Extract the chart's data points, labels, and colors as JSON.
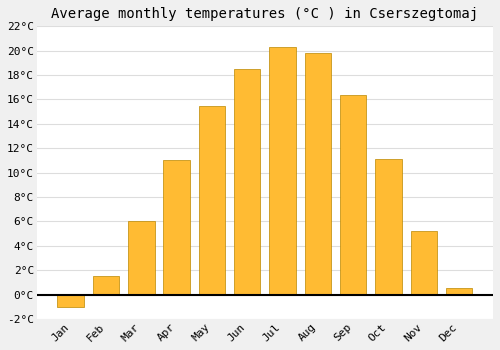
{
  "title": "Average monthly temperatures (°C ) in Cserszegtomaj",
  "months": [
    "Jan",
    "Feb",
    "Mar",
    "Apr",
    "May",
    "Jun",
    "Jul",
    "Aug",
    "Sep",
    "Oct",
    "Nov",
    "Dec"
  ],
  "values": [
    -1.0,
    1.5,
    6.0,
    11.0,
    15.5,
    18.5,
    20.3,
    19.8,
    16.4,
    11.1,
    5.2,
    0.5
  ],
  "bar_color_top": "#FFBB33",
  "bar_color_bottom": "#FF9900",
  "bar_edge_color": "#BB8800",
  "plot_bg_color": "#ffffff",
  "fig_bg_color": "#f0f0f0",
  "grid_color": "#dddddd",
  "ylim": [
    -2,
    22
  ],
  "ytick_step": 2,
  "title_fontsize": 10,
  "tick_fontsize": 8,
  "figsize": [
    5.0,
    3.5
  ],
  "dpi": 100,
  "bar_width": 0.75
}
